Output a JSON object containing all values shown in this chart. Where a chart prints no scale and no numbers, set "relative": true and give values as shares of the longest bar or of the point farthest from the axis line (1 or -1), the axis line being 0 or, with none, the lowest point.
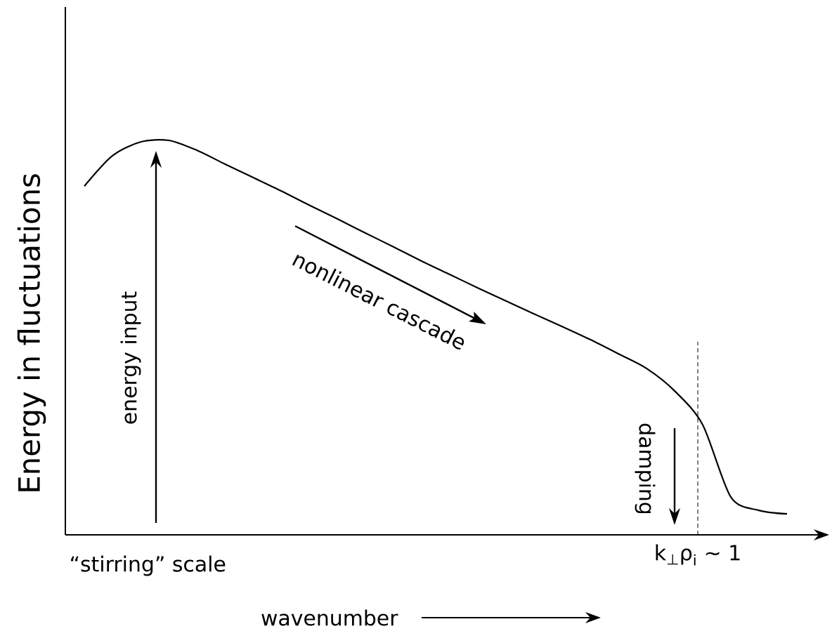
{
  "chart_data": {
    "type": "line",
    "relative": true,
    "xlabel": "wavenumber",
    "ylabel": "Energy in fluctuations",
    "categories": [
      null,
      null,
      null,
      null,
      null,
      null,
      null,
      null,
      null,
      null,
      null,
      null,
      null,
      null,
      null,
      null,
      null,
      null,
      null,
      null,
      null,
      null,
      null,
      null,
      null,
      null
    ],
    "series": [
      {
        "color": "#000000",
        "values": [
          0.884,
          0.961,
          0.996,
          1,
          0.975,
          0.94,
          0.906,
          0.872,
          0.836,
          0.801,
          0.765,
          0.73,
          0.694,
          0.66,
          0.626,
          0.593,
          0.56,
          0.528,
          0.495,
          0.459,
          0.422,
          0.365,
          0.279,
          0.096,
          0.062,
          0.053
        ]
      }
    ],
    "annotations": [
      "energy input",
      "nonlinear cascade",
      "damping",
      "“stirring” scale",
      "k$_{⊥}$ρ$_{i}$ ~ 1"
    ]
  }
}
